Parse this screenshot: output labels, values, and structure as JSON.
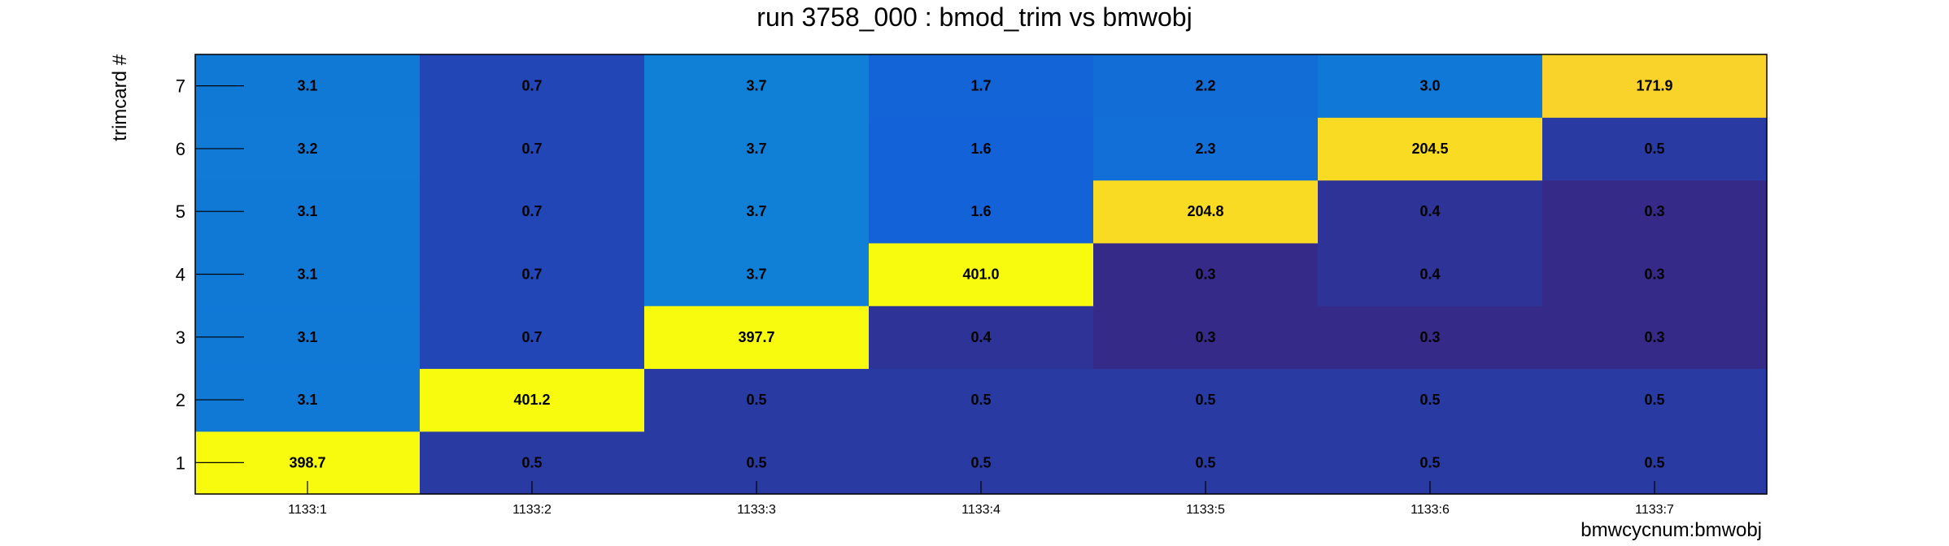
{
  "chart_data": {
    "type": "heatmap",
    "title": "run 3758_000 : bmod_trim vs bmwobj",
    "xlabel": "bmwcycnum:bmwobj",
    "ylabel": "trimcard #",
    "x_categories": [
      "1133:1",
      "1133:2",
      "1133:3",
      "1133:4",
      "1133:5",
      "1133:6",
      "1133:7"
    ],
    "y_categories": [
      "1",
      "2",
      "3",
      "4",
      "5",
      "6",
      "7"
    ],
    "values": [
      [
        398.7,
        0.5,
        0.5,
        0.5,
        0.5,
        0.5,
        0.5
      ],
      [
        3.1,
        401.2,
        0.5,
        0.5,
        0.5,
        0.5,
        0.5
      ],
      [
        3.1,
        0.7,
        397.7,
        0.4,
        0.3,
        0.3,
        0.3
      ],
      [
        3.1,
        0.7,
        3.7,
        401.0,
        0.3,
        0.4,
        0.3
      ],
      [
        3.1,
        0.7,
        3.7,
        1.6,
        204.8,
        0.4,
        0.3
      ],
      [
        3.2,
        0.7,
        3.7,
        1.6,
        2.3,
        204.5,
        0.5
      ],
      [
        3.1,
        0.7,
        3.7,
        1.7,
        2.2,
        3.0,
        171.9
      ]
    ],
    "value_labels": [
      [
        "398.7",
        "0.5",
        "0.5",
        "0.5",
        "0.5",
        "0.5",
        "0.5"
      ],
      [
        "3.1",
        "401.2",
        "0.5",
        "0.5",
        "0.5",
        "0.5",
        "0.5"
      ],
      [
        "3.1",
        "0.7",
        "397.7",
        "0.4",
        "0.3",
        "0.3",
        "0.3"
      ],
      [
        "3.1",
        "0.7",
        "3.7",
        "401.0",
        "0.3",
        "0.4",
        "0.3"
      ],
      [
        "3.1",
        "0.7",
        "3.7",
        "1.6",
        "204.8",
        "0.4",
        "0.3"
      ],
      [
        "3.2",
        "0.7",
        "3.7",
        "1.6",
        "2.3",
        "204.5",
        "0.5"
      ],
      [
        "3.1",
        "0.7",
        "3.7",
        "1.7",
        "2.2",
        "3.0",
        "171.9"
      ]
    ],
    "colorscale": "parula",
    "color_scale": "log",
    "grid": false,
    "legend": "none"
  }
}
